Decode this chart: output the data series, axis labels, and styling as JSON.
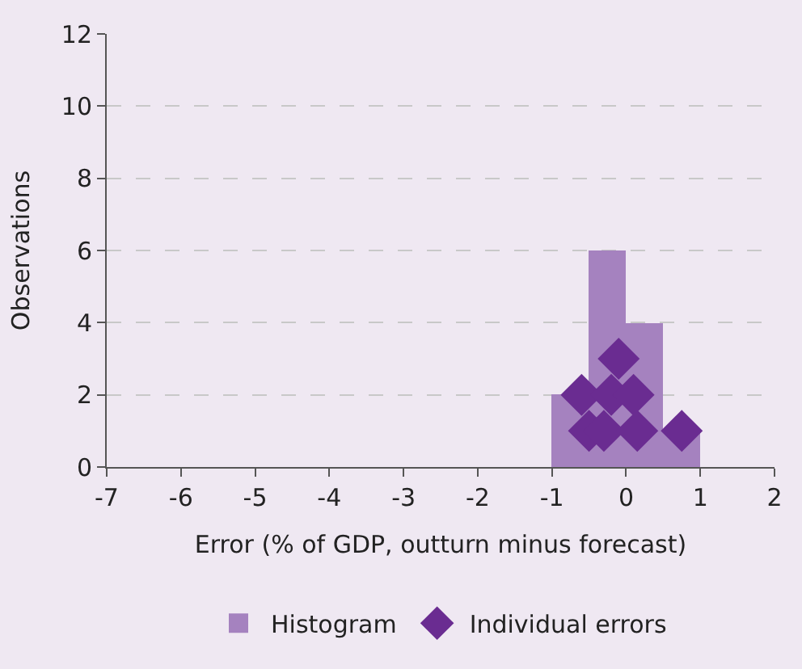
{
  "chart_data": {
    "type": "histogram",
    "xlabel": "Error (% of GDP, outturn minus forecast)",
    "ylabel": "Observations",
    "series": [
      {
        "name": "Histogram",
        "color": "#a582bf",
        "bins": [
          -1,
          -0.5,
          0,
          0.5,
          1
        ],
        "values": [
          2,
          6,
          4,
          1
        ]
      },
      {
        "type": "scatter",
        "name": "Individual errors",
        "color": "#6a2c91",
        "x": [
          -0.6,
          -0.5,
          -0.3,
          -0.2,
          -0.1,
          0.0,
          0.1,
          0.15,
          0.75
        ],
        "values": [
          2,
          1,
          1,
          2,
          3,
          null,
          2,
          1,
          1
        ]
      }
    ],
    "marker": "diamond",
    "xlim": [
      -7,
      2
    ],
    "xticks": [
      -7,
      -6,
      -5,
      -4,
      -3,
      -2,
      -1,
      0,
      1,
      2
    ],
    "ylim": [
      0,
      12
    ],
    "yticks": [
      0,
      2,
      4,
      6,
      8,
      10,
      12
    ],
    "grid": "y",
    "legend": "bottom"
  }
}
